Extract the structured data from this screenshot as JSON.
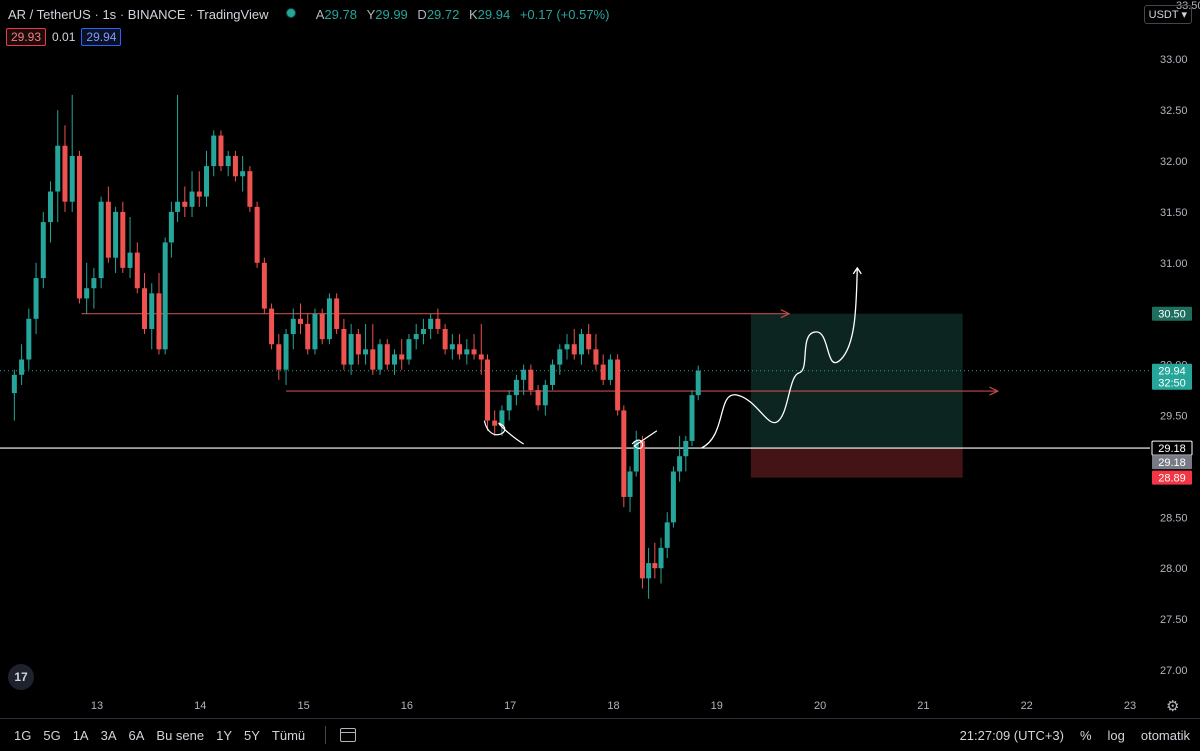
{
  "header": {
    "symbol": "AR / TetherUS",
    "interval": "1s",
    "exchange": "BINANCE",
    "platform": "TradingView",
    "ohlc": {
      "open_label": "A",
      "open": "29.78",
      "high_label": "Y",
      "high": "29.99",
      "low_label": "D",
      "low": "29.72",
      "close_label": "K",
      "close": "29.94",
      "change": "+0.17 (+0.57%)"
    }
  },
  "spread": {
    "bid": "29.93",
    "spread": "0.01",
    "ask": "29.94"
  },
  "currency_selector": "USDT",
  "price_axis": {
    "ticks": [
      "33.00",
      "32.50",
      "32.00",
      "31.50",
      "31.00",
      "30.50",
      "30.00",
      "29.50",
      "28.50",
      "28.00",
      "27.50",
      "27.00"
    ],
    "top_cut_label": "33.50",
    "tags": {
      "target": "30.50",
      "last_price": "29.94",
      "countdown": "32:50",
      "horizontal_line": "29.18",
      "entry": "29.18",
      "stop": "28.89"
    }
  },
  "time_axis": {
    "ticks": [
      "13",
      "14",
      "15",
      "16",
      "17",
      "18",
      "19",
      "20",
      "21",
      "22",
      "23"
    ]
  },
  "bottom_bar": {
    "ranges": [
      "1G",
      "5G",
      "1A",
      "3A",
      "6A",
      "Bu sene",
      "1Y",
      "5Y",
      "Tümü"
    ],
    "clock": "21:27:09 (UTC+3)",
    "percent": "%",
    "log": "log",
    "auto": "otomatik"
  },
  "logo_text": "17",
  "colors": {
    "up": "#26a69a",
    "down": "#ef5350",
    "bg": "#000000",
    "target_zone": "#0f2b27",
    "stop_zone": "#4a1518"
  },
  "chart_data": {
    "type": "candlestick",
    "title": "",
    "ylim": [
      26.8,
      33.55
    ],
    "xlim": [
      12.2,
      23.4
    ],
    "x": [
      "13",
      "14",
      "15",
      "16",
      "17",
      "18",
      "19",
      "20",
      "21",
      "22",
      "23"
    ],
    "price_levels": {
      "resistance": 30.5,
      "mid": 29.74,
      "support": 29.18,
      "last": 29.94
    },
    "position": {
      "entry": 29.18,
      "target": 30.5,
      "stop": 28.89,
      "start_day": 19.33,
      "end_day": 21.38
    },
    "candles": [
      {
        "d": 12.2,
        "o": 29.72,
        "h": 29.95,
        "l": 29.45,
        "c": 29.9
      },
      {
        "d": 12.27,
        "o": 29.9,
        "h": 30.2,
        "l": 29.8,
        "c": 30.05
      },
      {
        "d": 12.34,
        "o": 30.05,
        "h": 30.55,
        "l": 29.95,
        "c": 30.45
      },
      {
        "d": 12.41,
        "o": 30.45,
        "h": 31.0,
        "l": 30.3,
        "c": 30.85
      },
      {
        "d": 12.48,
        "o": 30.85,
        "h": 31.5,
        "l": 30.75,
        "c": 31.4
      },
      {
        "d": 12.55,
        "o": 31.4,
        "h": 31.8,
        "l": 31.2,
        "c": 31.7
      },
      {
        "d": 12.62,
        "o": 31.7,
        "h": 32.5,
        "l": 31.4,
        "c": 32.15
      },
      {
        "d": 12.69,
        "o": 32.15,
        "h": 32.35,
        "l": 31.5,
        "c": 31.6
      },
      {
        "d": 12.76,
        "o": 31.6,
        "h": 32.65,
        "l": 31.5,
        "c": 32.05
      },
      {
        "d": 12.83,
        "o": 32.05,
        "h": 32.1,
        "l": 30.6,
        "c": 30.65
      },
      {
        "d": 12.9,
        "o": 30.65,
        "h": 31.0,
        "l": 30.5,
        "c": 30.75
      },
      {
        "d": 12.97,
        "o": 30.75,
        "h": 30.95,
        "l": 30.55,
        "c": 30.85
      },
      {
        "d": 13.04,
        "o": 30.85,
        "h": 31.65,
        "l": 30.75,
        "c": 31.6
      },
      {
        "d": 13.11,
        "o": 31.6,
        "h": 31.75,
        "l": 31.0,
        "c": 31.05
      },
      {
        "d": 13.18,
        "o": 31.05,
        "h": 31.55,
        "l": 30.9,
        "c": 31.5
      },
      {
        "d": 13.25,
        "o": 31.5,
        "h": 31.6,
        "l": 30.9,
        "c": 30.95
      },
      {
        "d": 13.32,
        "o": 30.95,
        "h": 31.45,
        "l": 30.85,
        "c": 31.1
      },
      {
        "d": 13.39,
        "o": 31.1,
        "h": 31.2,
        "l": 30.7,
        "c": 30.75
      },
      {
        "d": 13.46,
        "o": 30.75,
        "h": 30.9,
        "l": 30.3,
        "c": 30.35
      },
      {
        "d": 13.53,
        "o": 30.35,
        "h": 30.8,
        "l": 30.15,
        "c": 30.7
      },
      {
        "d": 13.6,
        "o": 30.7,
        "h": 30.9,
        "l": 30.1,
        "c": 30.15
      },
      {
        "d": 13.66,
        "o": 30.15,
        "h": 31.25,
        "l": 30.1,
        "c": 31.2
      },
      {
        "d": 13.72,
        "o": 31.2,
        "h": 31.6,
        "l": 31.05,
        "c": 31.5
      },
      {
        "d": 13.78,
        "o": 31.5,
        "h": 32.65,
        "l": 31.4,
        "c": 31.6
      },
      {
        "d": 13.85,
        "o": 31.6,
        "h": 31.75,
        "l": 31.45,
        "c": 31.55
      },
      {
        "d": 13.92,
        "o": 31.55,
        "h": 31.9,
        "l": 31.45,
        "c": 31.7
      },
      {
        "d": 13.99,
        "o": 31.7,
        "h": 31.9,
        "l": 31.55,
        "c": 31.65
      },
      {
        "d": 14.06,
        "o": 31.65,
        "h": 32.1,
        "l": 31.55,
        "c": 31.95
      },
      {
        "d": 14.13,
        "o": 31.95,
        "h": 32.3,
        "l": 31.85,
        "c": 32.25
      },
      {
        "d": 14.2,
        "o": 32.25,
        "h": 32.3,
        "l": 31.9,
        "c": 31.95
      },
      {
        "d": 14.27,
        "o": 31.95,
        "h": 32.1,
        "l": 31.85,
        "c": 32.05
      },
      {
        "d": 14.34,
        "o": 32.05,
        "h": 32.1,
        "l": 31.8,
        "c": 31.85
      },
      {
        "d": 14.41,
        "o": 31.85,
        "h": 32.05,
        "l": 31.7,
        "c": 31.9
      },
      {
        "d": 14.48,
        "o": 31.9,
        "h": 31.95,
        "l": 31.5,
        "c": 31.55
      },
      {
        "d": 14.55,
        "o": 31.55,
        "h": 31.6,
        "l": 30.95,
        "c": 31.0
      },
      {
        "d": 14.62,
        "o": 31.0,
        "h": 31.05,
        "l": 30.5,
        "c": 30.55
      },
      {
        "d": 14.69,
        "o": 30.55,
        "h": 30.6,
        "l": 30.15,
        "c": 30.2
      },
      {
        "d": 14.76,
        "o": 30.2,
        "h": 30.3,
        "l": 29.85,
        "c": 29.95
      },
      {
        "d": 14.83,
        "o": 29.95,
        "h": 30.35,
        "l": 29.8,
        "c": 30.3
      },
      {
        "d": 14.9,
        "o": 30.3,
        "h": 30.55,
        "l": 30.15,
        "c": 30.45
      },
      {
        "d": 14.97,
        "o": 30.45,
        "h": 30.6,
        "l": 30.3,
        "c": 30.4
      },
      {
        "d": 15.04,
        "o": 30.4,
        "h": 30.5,
        "l": 30.1,
        "c": 30.15
      },
      {
        "d": 15.11,
        "o": 30.15,
        "h": 30.55,
        "l": 30.1,
        "c": 30.5
      },
      {
        "d": 15.18,
        "o": 30.5,
        "h": 30.55,
        "l": 30.2,
        "c": 30.25
      },
      {
        "d": 15.25,
        "o": 30.25,
        "h": 30.7,
        "l": 30.2,
        "c": 30.65
      },
      {
        "d": 15.32,
        "o": 30.65,
        "h": 30.7,
        "l": 30.3,
        "c": 30.35
      },
      {
        "d": 15.39,
        "o": 30.35,
        "h": 30.45,
        "l": 29.95,
        "c": 30.0
      },
      {
        "d": 15.46,
        "o": 30.0,
        "h": 30.4,
        "l": 29.9,
        "c": 30.3
      },
      {
        "d": 15.53,
        "o": 30.3,
        "h": 30.35,
        "l": 30.0,
        "c": 30.1
      },
      {
        "d": 15.6,
        "o": 30.1,
        "h": 30.4,
        "l": 30.0,
        "c": 30.15
      },
      {
        "d": 15.67,
        "o": 30.15,
        "h": 30.4,
        "l": 29.9,
        "c": 29.95
      },
      {
        "d": 15.74,
        "o": 29.95,
        "h": 30.25,
        "l": 29.9,
        "c": 30.2
      },
      {
        "d": 15.81,
        "o": 30.2,
        "h": 30.25,
        "l": 29.95,
        "c": 30.0
      },
      {
        "d": 15.88,
        "o": 30.0,
        "h": 30.15,
        "l": 29.9,
        "c": 30.1
      },
      {
        "d": 15.95,
        "o": 30.1,
        "h": 30.25,
        "l": 29.95,
        "c": 30.05
      },
      {
        "d": 16.02,
        "o": 30.05,
        "h": 30.3,
        "l": 30.0,
        "c": 30.25
      },
      {
        "d": 16.09,
        "o": 30.25,
        "h": 30.4,
        "l": 30.15,
        "c": 30.3
      },
      {
        "d": 16.16,
        "o": 30.3,
        "h": 30.45,
        "l": 30.2,
        "c": 30.35
      },
      {
        "d": 16.23,
        "o": 30.35,
        "h": 30.5,
        "l": 30.25,
        "c": 30.45
      },
      {
        "d": 16.3,
        "o": 30.45,
        "h": 30.55,
        "l": 30.3,
        "c": 30.35
      },
      {
        "d": 16.37,
        "o": 30.35,
        "h": 30.4,
        "l": 30.1,
        "c": 30.15
      },
      {
        "d": 16.44,
        "o": 30.15,
        "h": 30.3,
        "l": 30.05,
        "c": 30.2
      },
      {
        "d": 16.51,
        "o": 30.2,
        "h": 30.3,
        "l": 30.05,
        "c": 30.1
      },
      {
        "d": 16.58,
        "o": 30.1,
        "h": 30.25,
        "l": 30.0,
        "c": 30.15
      },
      {
        "d": 16.65,
        "o": 30.15,
        "h": 30.3,
        "l": 30.05,
        "c": 30.1
      },
      {
        "d": 16.72,
        "o": 30.1,
        "h": 30.4,
        "l": 29.9,
        "c": 30.05
      },
      {
        "d": 16.78,
        "o": 30.05,
        "h": 30.1,
        "l": 29.35,
        "c": 29.45
      },
      {
        "d": 16.85,
        "o": 29.45,
        "h": 29.55,
        "l": 29.3,
        "c": 29.4
      },
      {
        "d": 16.92,
        "o": 29.4,
        "h": 29.6,
        "l": 29.3,
        "c": 29.55
      },
      {
        "d": 16.99,
        "o": 29.55,
        "h": 29.75,
        "l": 29.45,
        "c": 29.7
      },
      {
        "d": 17.06,
        "o": 29.7,
        "h": 29.9,
        "l": 29.6,
        "c": 29.85
      },
      {
        "d": 17.13,
        "o": 29.85,
        "h": 30.0,
        "l": 29.7,
        "c": 29.95
      },
      {
        "d": 17.2,
        "o": 29.95,
        "h": 30.0,
        "l": 29.7,
        "c": 29.75
      },
      {
        "d": 17.27,
        "o": 29.75,
        "h": 29.8,
        "l": 29.55,
        "c": 29.6
      },
      {
        "d": 17.34,
        "o": 29.6,
        "h": 29.85,
        "l": 29.5,
        "c": 29.8
      },
      {
        "d": 17.41,
        "o": 29.8,
        "h": 30.05,
        "l": 29.75,
        "c": 30.0
      },
      {
        "d": 17.48,
        "o": 30.0,
        "h": 30.2,
        "l": 29.9,
        "c": 30.15
      },
      {
        "d": 17.55,
        "o": 30.15,
        "h": 30.3,
        "l": 30.05,
        "c": 30.2
      },
      {
        "d": 17.62,
        "o": 30.2,
        "h": 30.35,
        "l": 30.05,
        "c": 30.1
      },
      {
        "d": 17.69,
        "o": 30.1,
        "h": 30.35,
        "l": 30.0,
        "c": 30.3
      },
      {
        "d": 17.76,
        "o": 30.3,
        "h": 30.4,
        "l": 30.1,
        "c": 30.15
      },
      {
        "d": 17.83,
        "o": 30.15,
        "h": 30.3,
        "l": 29.95,
        "c": 30.0
      },
      {
        "d": 17.9,
        "o": 30.0,
        "h": 30.1,
        "l": 29.8,
        "c": 29.85
      },
      {
        "d": 17.97,
        "o": 29.85,
        "h": 30.1,
        "l": 29.8,
        "c": 30.05
      },
      {
        "d": 18.04,
        "o": 30.05,
        "h": 30.1,
        "l": 29.5,
        "c": 29.55
      },
      {
        "d": 18.1,
        "o": 29.55,
        "h": 29.6,
        "l": 28.6,
        "c": 28.7
      },
      {
        "d": 18.16,
        "o": 28.7,
        "h": 29.0,
        "l": 28.55,
        "c": 28.95
      },
      {
        "d": 18.22,
        "o": 28.95,
        "h": 29.35,
        "l": 28.9,
        "c": 29.25
      },
      {
        "d": 18.28,
        "o": 29.25,
        "h": 29.3,
        "l": 27.8,
        "c": 27.9
      },
      {
        "d": 18.34,
        "o": 27.9,
        "h": 28.2,
        "l": 27.7,
        "c": 28.05
      },
      {
        "d": 18.4,
        "o": 28.05,
        "h": 28.25,
        "l": 27.9,
        "c": 28.0
      },
      {
        "d": 18.46,
        "o": 28.0,
        "h": 28.3,
        "l": 27.85,
        "c": 28.2
      },
      {
        "d": 18.52,
        "o": 28.2,
        "h": 28.55,
        "l": 28.1,
        "c": 28.45
      },
      {
        "d": 18.58,
        "o": 28.45,
        "h": 29.0,
        "l": 28.4,
        "c": 28.95
      },
      {
        "d": 18.64,
        "o": 28.95,
        "h": 29.3,
        "l": 28.85,
        "c": 29.1
      },
      {
        "d": 18.7,
        "o": 29.1,
        "h": 29.3,
        "l": 28.95,
        "c": 29.25
      },
      {
        "d": 18.76,
        "o": 29.25,
        "h": 29.75,
        "l": 29.2,
        "c": 29.7
      },
      {
        "d": 18.82,
        "o": 29.7,
        "h": 29.99,
        "l": 29.65,
        "c": 29.94
      }
    ]
  }
}
